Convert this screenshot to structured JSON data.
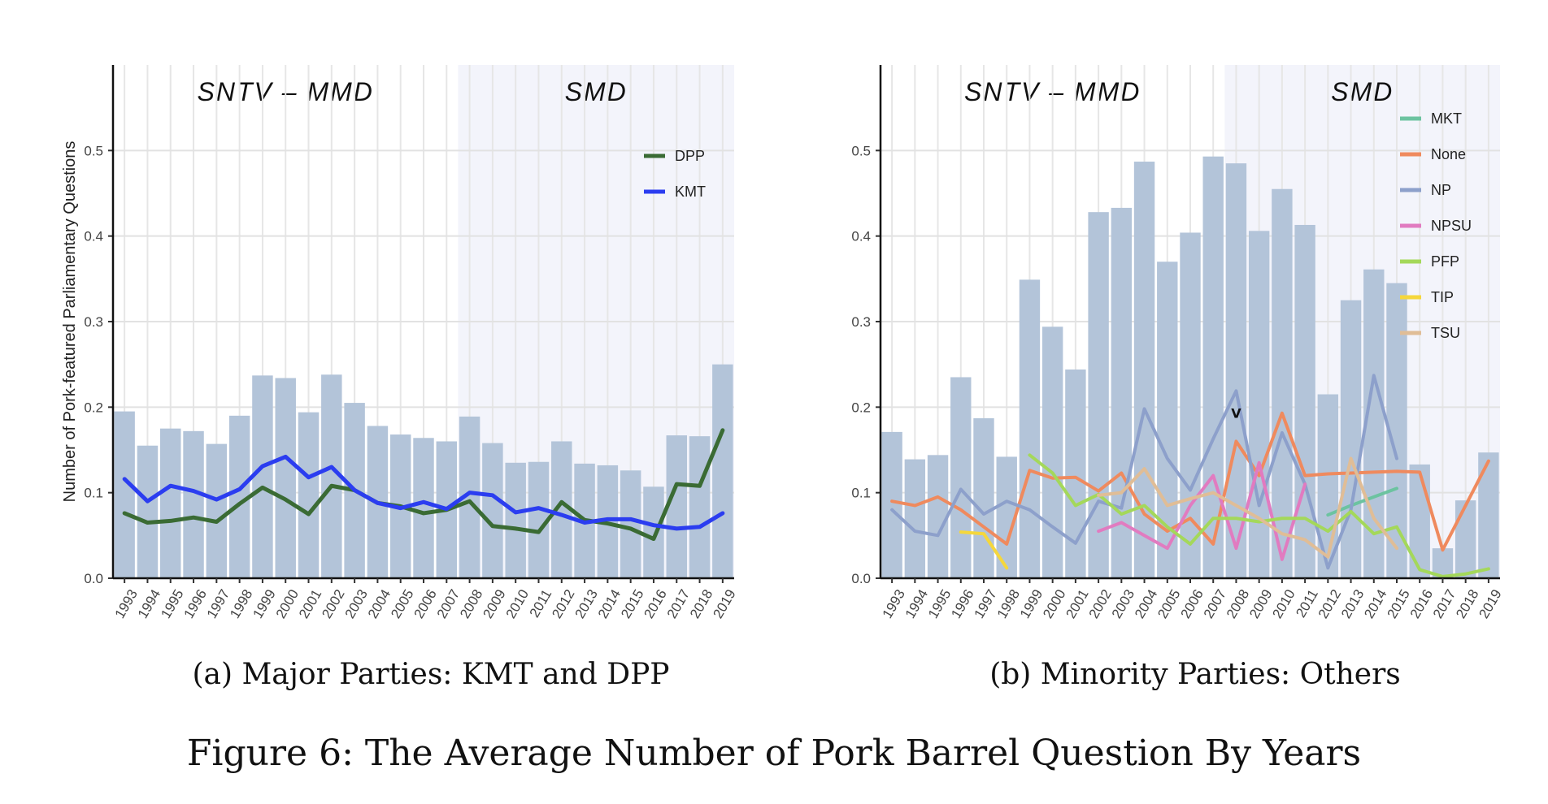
{
  "figure": {
    "caption_a": "(a) Major Parties: KMT and DPP",
    "caption_b": "(b) Minority Parties: Others",
    "title": "Figure 6: The Average Number of Pork Barrel Question By Years"
  },
  "chart_data": [
    {
      "type": "bar",
      "panel": "a",
      "ylabel": "Number of Pork-featured Parliamentary Questions",
      "xlabel": "",
      "ylim": [
        0,
        0.6
      ],
      "yticks": [
        0.0,
        0.1,
        0.2,
        0.3,
        0.4,
        0.5
      ],
      "yticklabels": [
        "0.0",
        "0.1",
        "0.2",
        "0.3",
        "0.4",
        "0.5"
      ],
      "grid": true,
      "legend_position": "top-right",
      "regions": [
        {
          "label": "SNTV – MMD",
          "from": "1993",
          "to": "2007",
          "shade": "#ffffff"
        },
        {
          "label": "SMD",
          "from": "2008",
          "to": "2019",
          "shade": "#f3f4fb"
        }
      ],
      "categories": [
        "1993",
        "1994",
        "1995",
        "1996",
        "1997",
        "1998",
        "1999",
        "2000",
        "2001",
        "2002",
        "2003",
        "2004",
        "2005",
        "2006",
        "2007",
        "2008",
        "2009",
        "2010",
        "2011",
        "2012",
        "2013",
        "2014",
        "2015",
        "2016",
        "2017",
        "2018",
        "2019"
      ],
      "bar_color": "#b3c4d9",
      "bars": [
        0.195,
        0.155,
        0.175,
        0.172,
        0.157,
        0.19,
        0.237,
        0.234,
        0.194,
        0.238,
        0.205,
        0.178,
        0.168,
        0.164,
        0.16,
        0.189,
        0.158,
        0.135,
        0.136,
        0.16,
        0.134,
        0.132,
        0.126,
        0.107,
        0.167,
        0.166,
        0.25
      ],
      "series": [
        {
          "name": "DPP",
          "color": "#3a6b34",
          "values": [
            0.076,
            0.065,
            0.067,
            0.071,
            0.066,
            0.087,
            0.106,
            0.092,
            0.075,
            0.108,
            0.103,
            0.088,
            0.084,
            0.076,
            0.08,
            0.09,
            0.061,
            0.058,
            0.054,
            0.089,
            0.068,
            0.064,
            0.058,
            0.046,
            0.11,
            0.108,
            0.173
          ]
        },
        {
          "name": "KMT",
          "color": "#2b3df0",
          "values": [
            0.116,
            0.09,
            0.108,
            0.102,
            0.092,
            0.104,
            0.131,
            0.142,
            0.118,
            0.13,
            0.103,
            0.088,
            0.082,
            0.089,
            0.081,
            0.1,
            0.097,
            0.077,
            0.082,
            0.074,
            0.065,
            0.069,
            0.069,
            0.062,
            0.058,
            0.06,
            0.076
          ]
        }
      ]
    },
    {
      "type": "bar",
      "panel": "b",
      "ylabel": "",
      "xlabel": "",
      "ylim": [
        0,
        0.6
      ],
      "yticks": [
        0.0,
        0.1,
        0.2,
        0.3,
        0.4,
        0.5
      ],
      "yticklabels": [
        "0.0",
        "0.1",
        "0.2",
        "0.3",
        "0.4",
        "0.5"
      ],
      "grid": true,
      "legend_position": "top-right",
      "regions": [
        {
          "label": "SNTV – MMD",
          "from": "1993",
          "to": "2007",
          "shade": "#ffffff"
        },
        {
          "label": "SMD",
          "from": "2008",
          "to": "2019",
          "shade": "#f3f4fb"
        }
      ],
      "categories": [
        "1993",
        "1994",
        "1995",
        "1996",
        "1997",
        "1998",
        "1999",
        "2000",
        "2001",
        "2002",
        "2003",
        "2004",
        "2005",
        "2006",
        "2007",
        "2008",
        "2009",
        "2010",
        "2011",
        "2012",
        "2013",
        "2014",
        "2015",
        "2016",
        "2017",
        "2018",
        "2019"
      ],
      "bar_color": "#b3c4d9",
      "bars": [
        0.171,
        0.139,
        0.144,
        0.235,
        0.187,
        0.142,
        0.349,
        0.294,
        0.244,
        0.428,
        0.433,
        0.487,
        0.37,
        0.404,
        0.493,
        0.485,
        0.406,
        0.455,
        0.413,
        0.215,
        0.325,
        0.361,
        0.345,
        0.133,
        0.035,
        0.091,
        0.147
      ],
      "annotation": {
        "text": "V",
        "x": "2008",
        "y": 0.195
      },
      "series": [
        {
          "name": "MKT",
          "color": "#6cc3a0",
          "values": [
            null,
            null,
            null,
            null,
            null,
            null,
            null,
            null,
            null,
            null,
            null,
            null,
            null,
            null,
            null,
            null,
            null,
            null,
            null,
            0.074,
            0.085,
            0.095,
            0.105,
            null,
            null,
            null,
            null
          ]
        },
        {
          "name": "None",
          "color": "#ef8a5e",
          "values": [
            0.09,
            0.085,
            0.095,
            0.08,
            0.06,
            0.04,
            0.126,
            0.117,
            0.118,
            0.102,
            0.123,
            0.075,
            0.055,
            0.07,
            0.04,
            0.16,
            0.12,
            0.193,
            0.12,
            0.122,
            0.123,
            0.124,
            0.125,
            0.124,
            0.033,
            0.085,
            0.137
          ]
        },
        {
          "name": "NP",
          "color": "#8da0cb",
          "values": [
            0.08,
            0.055,
            0.05,
            0.104,
            0.075,
            0.09,
            0.08,
            0.06,
            0.041,
            0.09,
            0.082,
            0.198,
            0.14,
            0.103,
            0.163,
            0.219,
            0.085,
            0.17,
            0.11,
            0.012,
            0.08,
            0.237,
            0.14,
            null,
            null,
            null,
            null
          ]
        },
        {
          "name": "NPSU",
          "color": "#e17bc0",
          "values": [
            null,
            null,
            null,
            null,
            null,
            null,
            null,
            null,
            null,
            0.055,
            0.065,
            0.05,
            0.035,
            0.085,
            0.12,
            0.035,
            0.135,
            0.022,
            0.11,
            null,
            null,
            null,
            null,
            null,
            null,
            null,
            null
          ]
        },
        {
          "name": "PFP",
          "color": "#a4d85a",
          "values": [
            null,
            null,
            null,
            null,
            null,
            null,
            0.144,
            0.123,
            0.085,
            0.098,
            0.075,
            0.085,
            0.06,
            0.04,
            0.07,
            0.07,
            0.066,
            0.07,
            0.07,
            0.055,
            0.078,
            0.052,
            0.06,
            0.01,
            0.002,
            0.005,
            0.011
          ]
        },
        {
          "name": "TIP",
          "color": "#f5d73c",
          "values": [
            null,
            null,
            null,
            0.054,
            0.052,
            0.012,
            null,
            null,
            null,
            null,
            null,
            null,
            null,
            null,
            null,
            null,
            null,
            null,
            null,
            null,
            null,
            null,
            null,
            null,
            null,
            null,
            null
          ]
        },
        {
          "name": "TSU",
          "color": "#e0bd96",
          "values": [
            null,
            null,
            null,
            null,
            null,
            null,
            null,
            null,
            null,
            0.097,
            0.1,
            0.128,
            0.085,
            0.093,
            0.1,
            0.085,
            0.07,
            0.052,
            0.045,
            0.025,
            0.14,
            0.07,
            0.035,
            null,
            null,
            null,
            null
          ]
        }
      ]
    }
  ]
}
